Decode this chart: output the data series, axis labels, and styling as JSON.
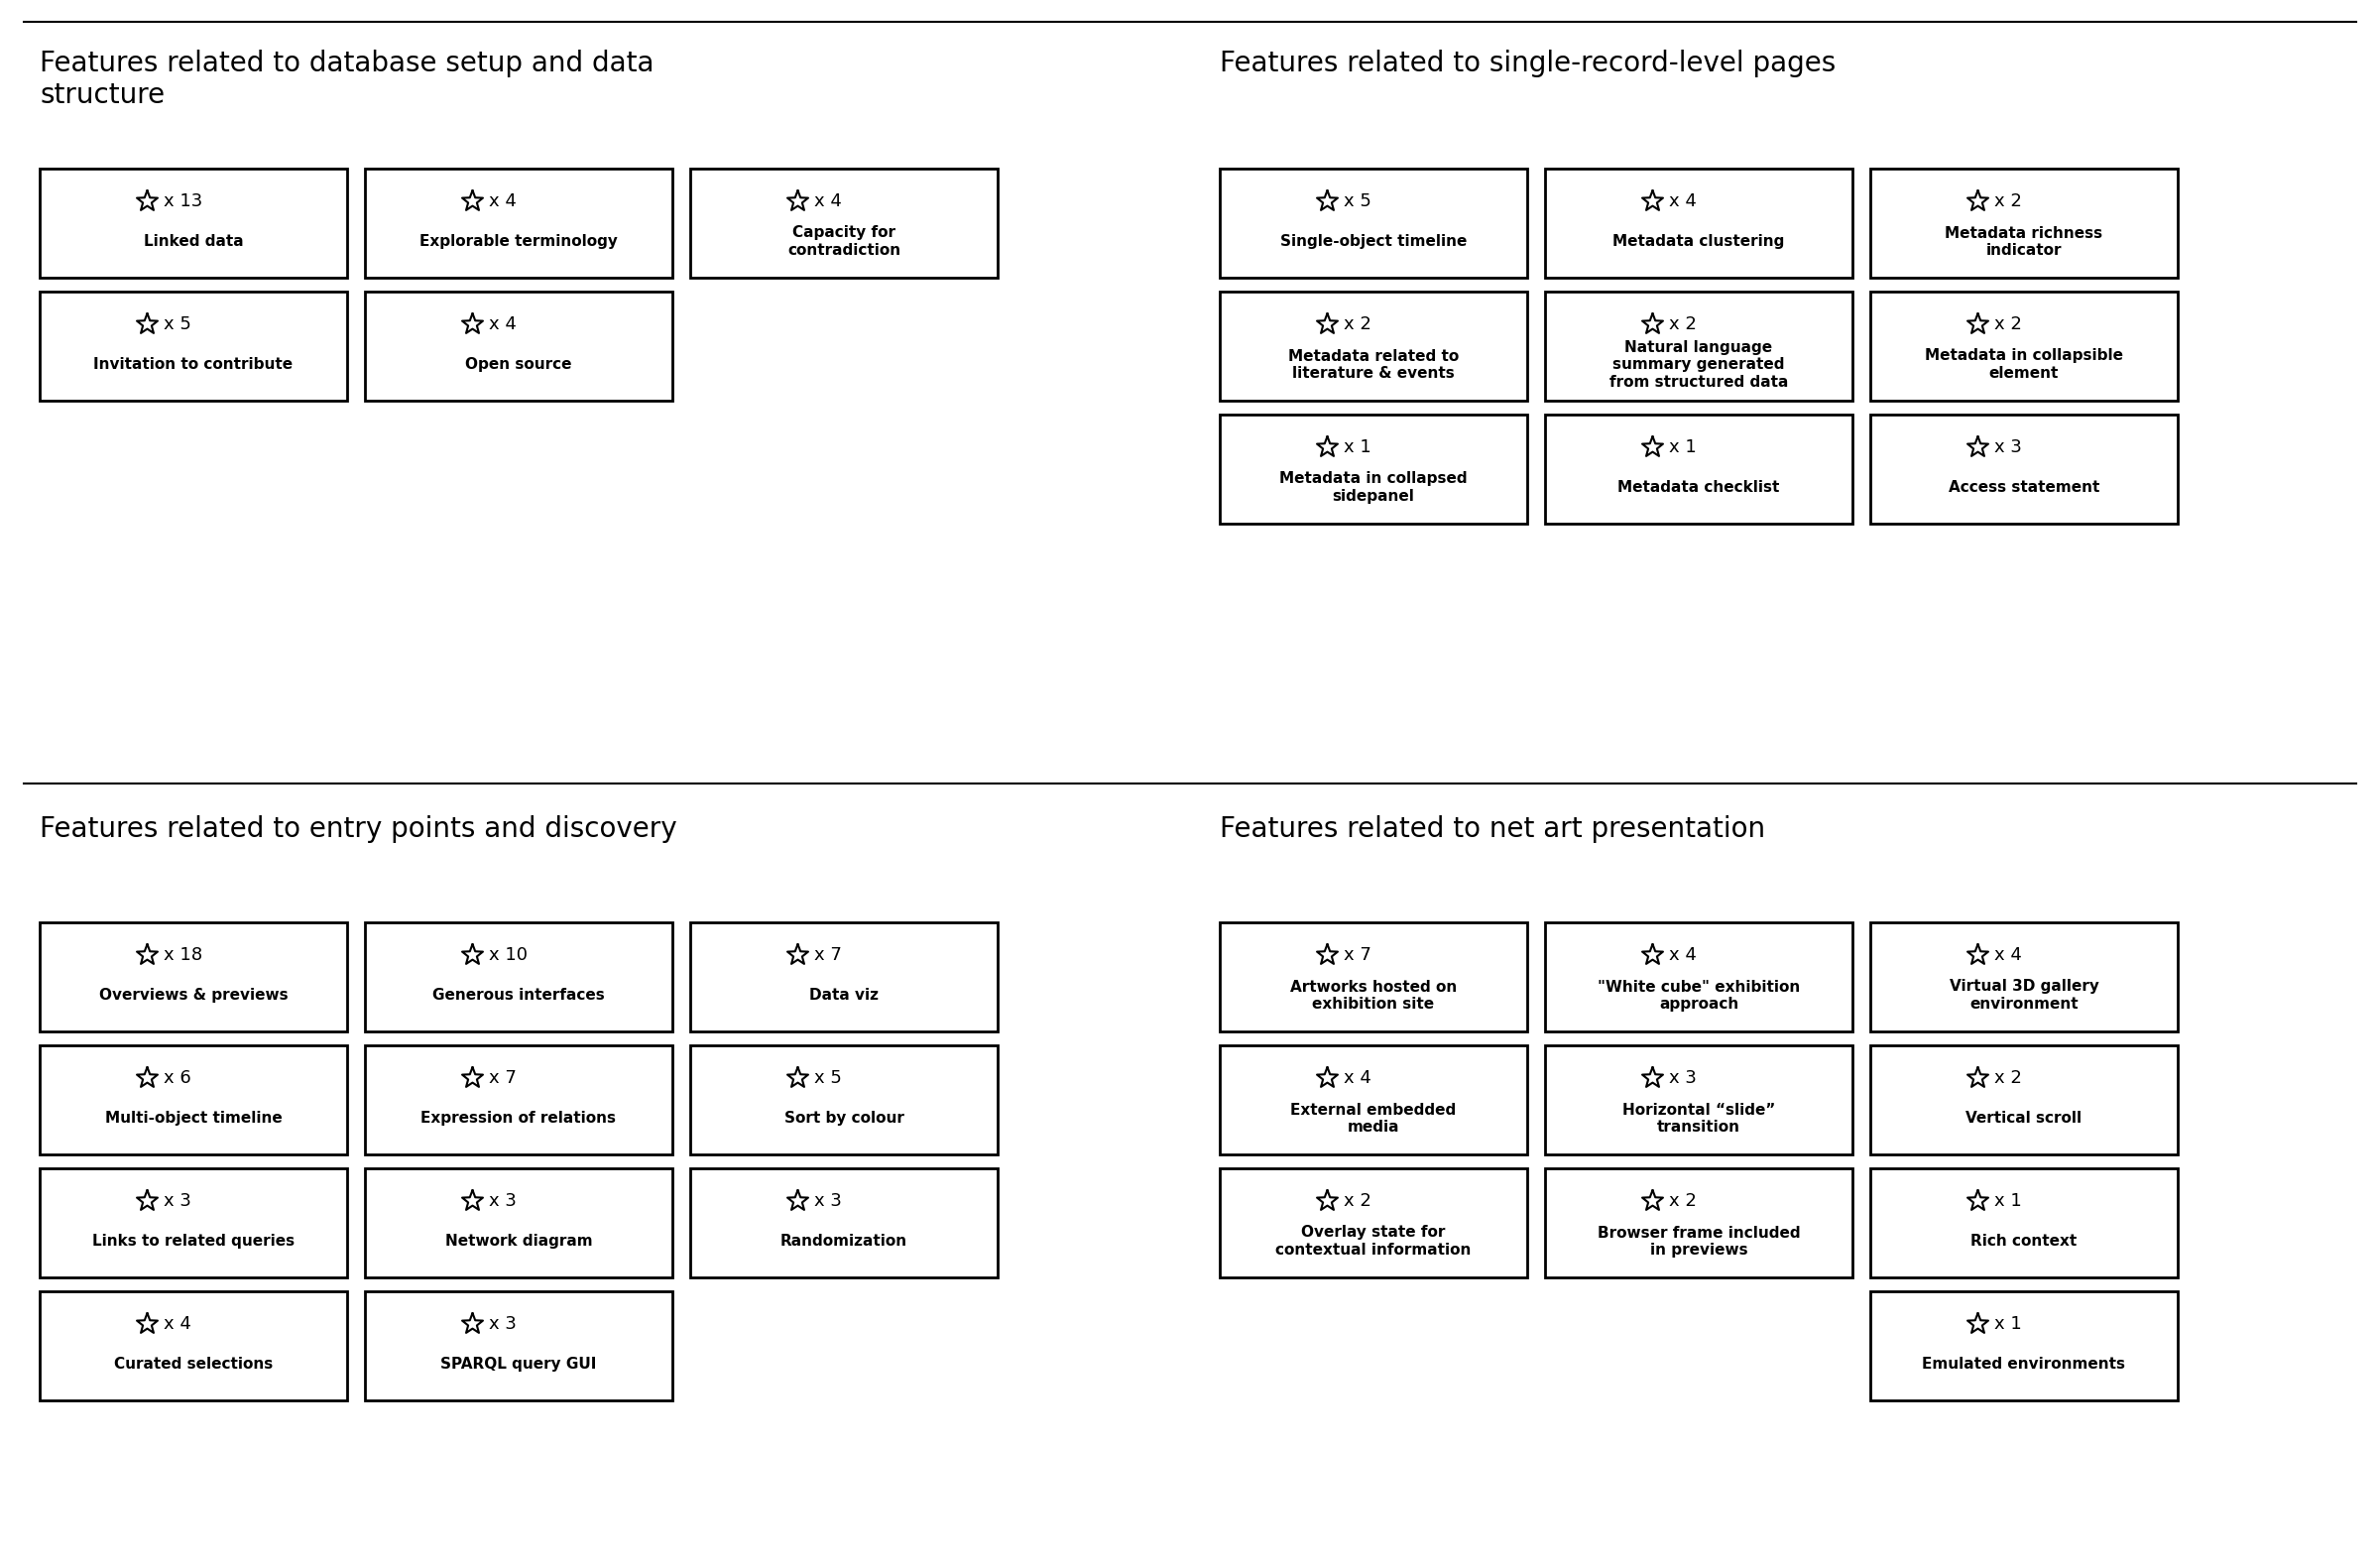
{
  "sections": [
    {
      "title": "Features related to database setup and data\nstructure",
      "cols": 3,
      "cards": [
        {
          "count": 13,
          "label": "Linked data"
        },
        {
          "count": 4,
          "label": "Explorable terminology"
        },
        {
          "count": 4,
          "label": "Capacity for\ncontradiction"
        },
        {
          "count": 5,
          "label": "Invitation to contribute"
        },
        {
          "count": 4,
          "label": "Open source"
        },
        null
      ],
      "quadrant": "top-left"
    },
    {
      "title": "Features related to single-record-level pages",
      "cols": 3,
      "cards": [
        {
          "count": 5,
          "label": "Single-object timeline"
        },
        {
          "count": 4,
          "label": "Metadata clustering"
        },
        {
          "count": 2,
          "label": "Metadata richness\nindicator"
        },
        {
          "count": 2,
          "label": "Metadata related to\nliterature & events"
        },
        {
          "count": 2,
          "label": "Natural language\nsummary generated\nfrom structured data"
        },
        {
          "count": 2,
          "label": "Metadata in collapsible\nelement"
        },
        {
          "count": 1,
          "label": "Metadata in collapsed\nsidepanel"
        },
        {
          "count": 1,
          "label": "Metadata checklist"
        },
        {
          "count": 3,
          "label": "Access statement"
        }
      ],
      "quadrant": "top-right"
    },
    {
      "title": "Features related to entry points and discovery",
      "cols": 3,
      "cards": [
        {
          "count": 18,
          "label": "Overviews & previews"
        },
        {
          "count": 10,
          "label": "Generous interfaces"
        },
        {
          "count": 7,
          "label": "Data viz"
        },
        {
          "count": 6,
          "label": "Multi-object timeline"
        },
        {
          "count": 7,
          "label": "Expression of relations"
        },
        {
          "count": 5,
          "label": "Sort by colour"
        },
        {
          "count": 3,
          "label": "Links to related queries"
        },
        {
          "count": 3,
          "label": "Network diagram"
        },
        {
          "count": 3,
          "label": "Randomization"
        },
        {
          "count": 4,
          "label": "Curated selections"
        },
        {
          "count": 3,
          "label": "SPARQL query GUI"
        },
        null
      ],
      "quadrant": "bottom-left"
    },
    {
      "title": "Features related to net art presentation",
      "cols": 3,
      "cards": [
        {
          "count": 7,
          "label": "Artworks hosted on\nexhibition site"
        },
        {
          "count": 4,
          "label": "\"White cube\" exhibition\napproach"
        },
        {
          "count": 4,
          "label": "Virtual 3D gallery\nenvironment"
        },
        {
          "count": 4,
          "label": "External embedded\nmedia"
        },
        {
          "count": 3,
          "label": "Horizontal “slide”\ntransition"
        },
        {
          "count": 2,
          "label": "Vertical scroll"
        },
        {
          "count": 2,
          "label": "Overlay state for\ncontextual information"
        },
        {
          "count": 2,
          "label": "Browser frame included\nin previews"
        },
        {
          "count": 1,
          "label": "Rich context"
        },
        null,
        null,
        {
          "count": 1,
          "label": "Emulated environments"
        }
      ],
      "quadrant": "bottom-right"
    }
  ],
  "bg_color": "#ffffff",
  "border_color": "#000000",
  "text_color": "#000000",
  "border_lw": 2.0,
  "title_fontsize": 20,
  "count_fontsize": 13,
  "label_fontsize": 11
}
